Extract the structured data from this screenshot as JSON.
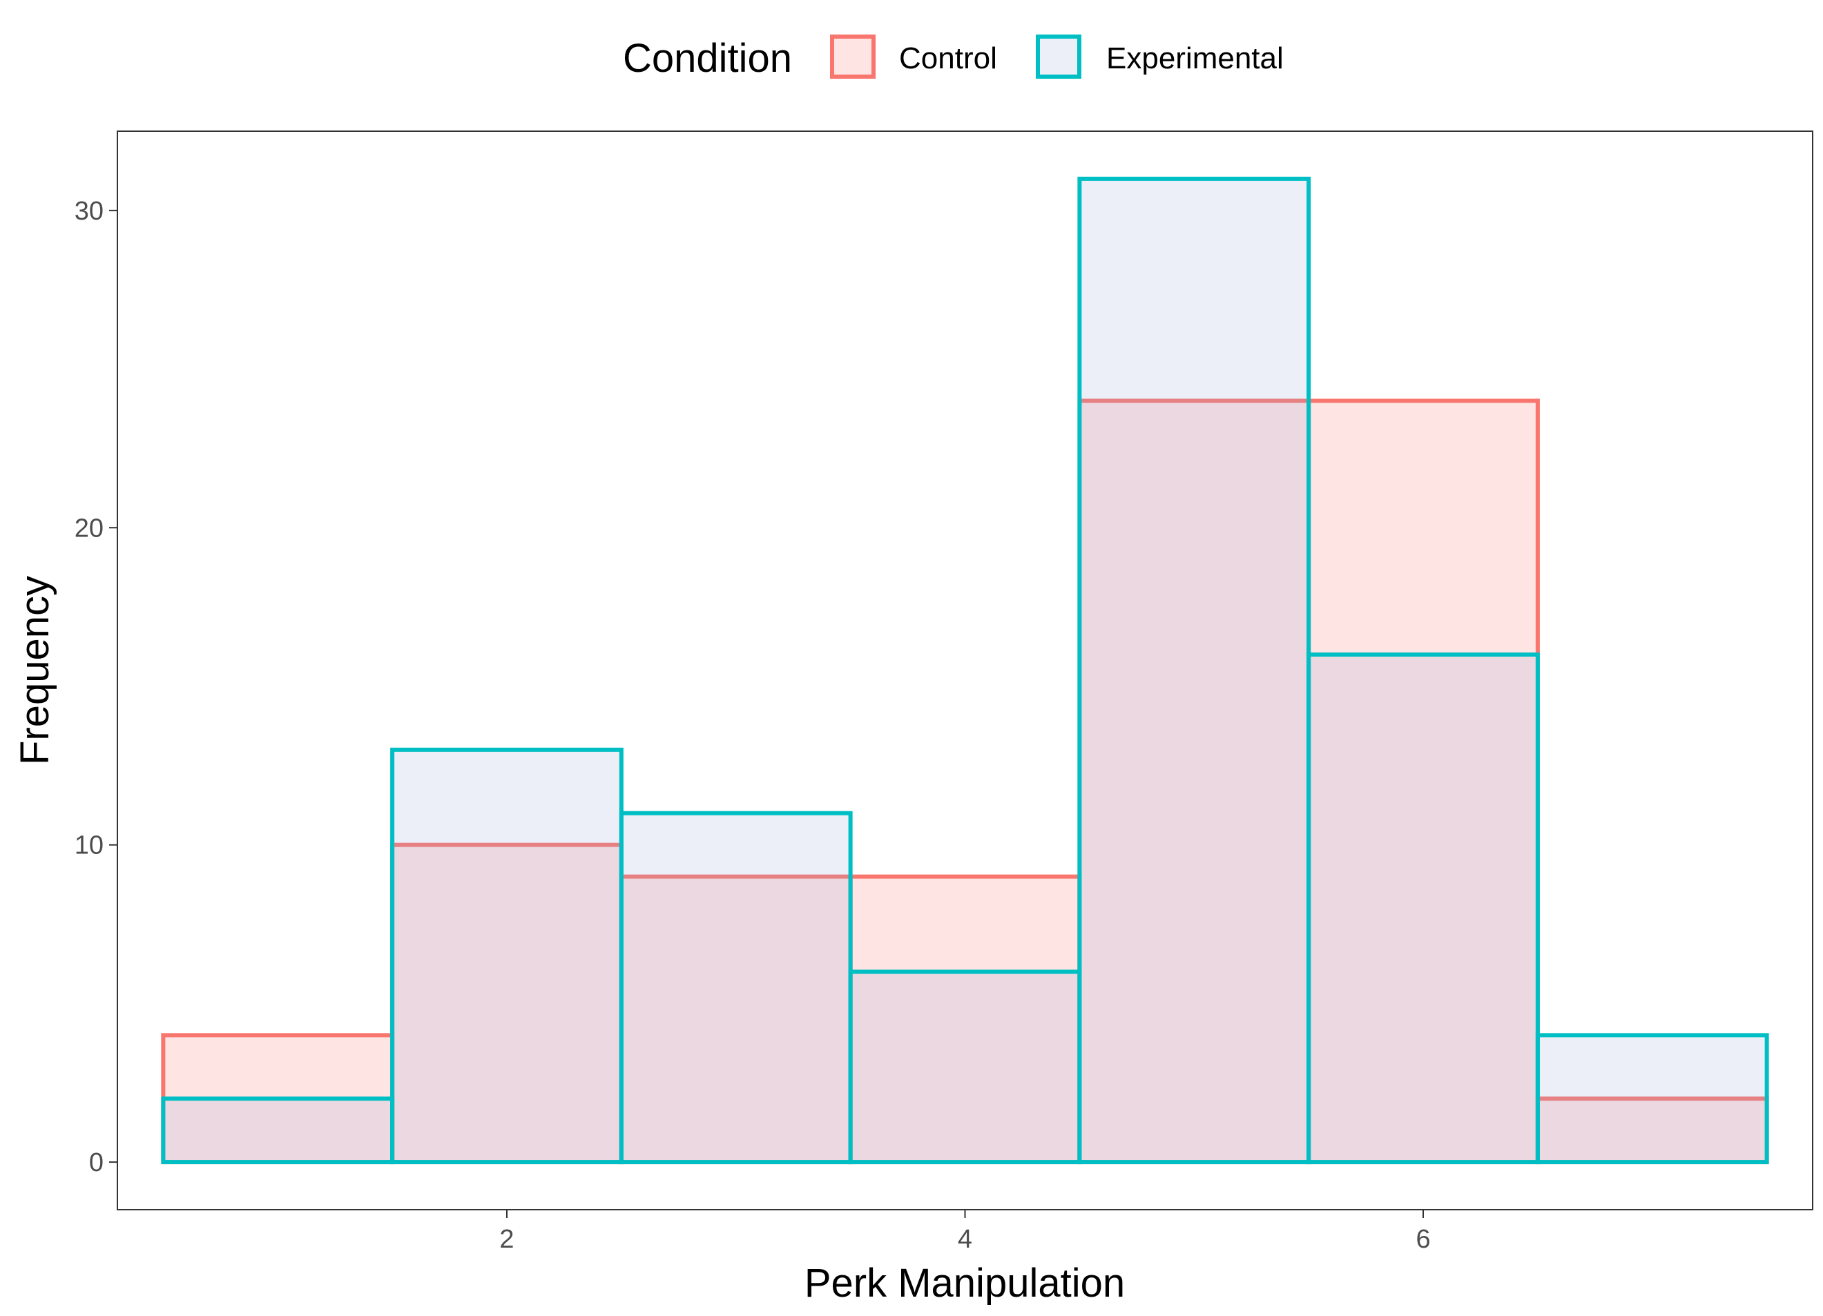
{
  "chart_data": {
    "type": "histogram",
    "xlabel": "Perk Manipulation",
    "ylabel": "Frequency",
    "xlim": [
      0.3,
      7.7
    ],
    "ylim": [
      -1.5,
      32.5
    ],
    "x_ticks": [
      2,
      4,
      6
    ],
    "y_ticks": [
      0,
      10,
      20,
      30
    ],
    "bin_width": 1,
    "bin_centers": [
      1,
      2,
      3,
      4,
      5,
      6,
      7
    ],
    "legend": {
      "title": "Condition",
      "position": "top"
    },
    "grid": false,
    "series": [
      {
        "name": "Control",
        "values": [
          4,
          10,
          9,
          9,
          24,
          24,
          2
        ],
        "color": "#f8766d",
        "fill": "#f8766d"
      },
      {
        "name": "Experimental",
        "values": [
          2,
          13,
          11,
          6,
          31,
          16,
          4
        ],
        "color": "#00bfc4",
        "fill": "#9fa8da"
      }
    ]
  }
}
